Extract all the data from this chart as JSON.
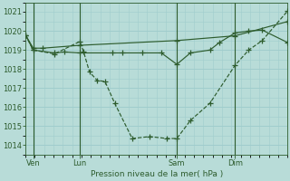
{
  "bg_color": "#b8dcd8",
  "grid_color": "#a8d4d0",
  "line_color": "#2d5c2d",
  "text_color": "#2d5c2d",
  "ylim": [
    1013.5,
    1021.5
  ],
  "yticks": [
    1014,
    1015,
    1016,
    1017,
    1018,
    1019,
    1020
  ],
  "ytick_top": 1021,
  "xlabel": "Pression niveau de la mer( hPa )",
  "xtick_labels": [
    "Ven",
    "Lun",
    "Sam",
    "Dim"
  ],
  "xtick_positions": [
    0.4,
    2.8,
    7.8,
    10.8
  ],
  "xvlines": [
    0.4,
    2.8,
    7.8,
    10.8
  ],
  "xlim": [
    0,
    13.5
  ],
  "s1_x": [
    0.0,
    0.4,
    1.5,
    2.8,
    3.0,
    3.3,
    3.7,
    4.1,
    4.6,
    5.5,
    6.4,
    7.3,
    7.8,
    8.5,
    9.5,
    10.8,
    11.5,
    12.2,
    13.5
  ],
  "s1_y": [
    1019.8,
    1019.0,
    1018.8,
    1019.45,
    1018.9,
    1017.85,
    1017.4,
    1017.35,
    1016.2,
    1014.35,
    1014.45,
    1014.35,
    1014.35,
    1015.3,
    1016.2,
    1018.2,
    1019.0,
    1019.5,
    1021.05
  ],
  "s2_x": [
    0.0,
    0.4,
    0.9,
    2.8,
    7.8,
    10.8,
    13.5
  ],
  "s2_y": [
    1019.8,
    1019.1,
    1019.1,
    1019.25,
    1019.5,
    1019.75,
    1020.5
  ],
  "s3_x": [
    0.0,
    0.4,
    1.5,
    2.0,
    2.8,
    4.5,
    5.0,
    6.0,
    7.0,
    7.8,
    8.5,
    9.5,
    10.0,
    10.8,
    11.5,
    12.2,
    13.5
  ],
  "s3_y": [
    1019.8,
    1019.0,
    1018.85,
    1018.9,
    1018.85,
    1018.85,
    1018.85,
    1018.85,
    1018.85,
    1018.25,
    1018.85,
    1019.0,
    1019.4,
    1019.9,
    1020.0,
    1020.05,
    1019.4
  ]
}
